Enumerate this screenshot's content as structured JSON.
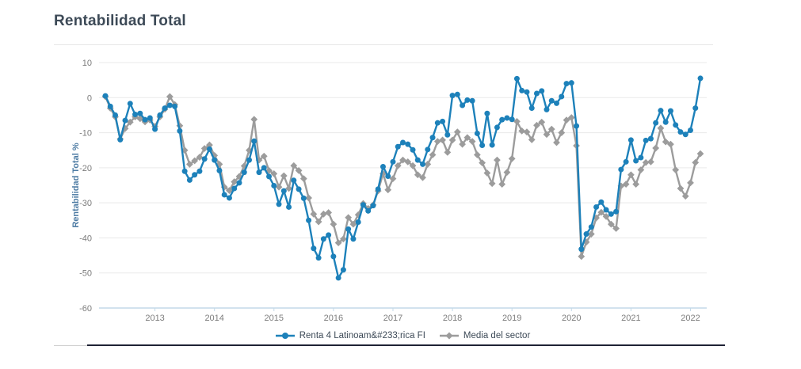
{
  "page": {
    "title": "Rentabilidad Total"
  },
  "chart_data": {
    "type": "line",
    "title": "Rentabilidad Total",
    "xlabel": "",
    "ylabel": "Rentabilidad Total %",
    "ylim": [
      -60,
      10
    ],
    "yticks": [
      10,
      0,
      -10,
      -20,
      -30,
      -40,
      -50,
      -60
    ],
    "xticks": [
      "2013",
      "2014",
      "2015",
      "2016",
      "2017",
      "2018",
      "2019",
      "2020",
      "2021",
      "2022"
    ],
    "x_start": "2012-03",
    "x_frequency": "monthly",
    "points": 121,
    "grid": "horizontal",
    "legend_position": "bottom",
    "colors": {
      "grid_line": "#e9e9e9",
      "axis_line": "#c3d9e8",
      "tick_label": "#7c7c7c",
      "axis_title": "#4d7ba3",
      "title_text": "#3d4a57",
      "legend_text": "#3d4a57"
    },
    "series": [
      {
        "name": "Renta 4 Latinoam&#233;rica FI",
        "color": "#1d81ba",
        "marker": "circle",
        "values": [
          0.5,
          -2.5,
          -5,
          -12,
          -6.5,
          -1.7,
          -4.8,
          -4.5,
          -6.3,
          -5.8,
          -9,
          -5,
          -3,
          -2.2,
          -2.5,
          -9.5,
          -21,
          -23.5,
          -22,
          -21,
          -17.5,
          -14.7,
          -17.8,
          -20.8,
          -27.7,
          -28.6,
          -25.9,
          -24.3,
          -21.3,
          -17.8,
          -12.4,
          -21.3,
          -20,
          -22.5,
          -25.1,
          -30.4,
          -26.6,
          -31.2,
          -23.6,
          -26.1,
          -28.7,
          -35,
          -43,
          -45.7,
          -40.3,
          -39.2,
          -45.3,
          -51.4,
          -49.1,
          -37.5,
          -40.3,
          -35.5,
          -30.6,
          -32.3,
          -30.8,
          -26.1,
          -19.7,
          -22.4,
          -18.3,
          -14,
          -12.8,
          -13.3,
          -14.9,
          -17.8,
          -19,
          -14.8,
          -11.4,
          -7.2,
          -6.8,
          -10.6,
          0.6,
          0.9,
          -2.2,
          -0.7,
          -0.9,
          -10.2,
          -13.6,
          -4.5,
          -13.5,
          -8.5,
          -6.3,
          -5.8,
          -6.2,
          5.4,
          2,
          1.6,
          -3,
          1.2,
          1.9,
          -3.4,
          -0.9,
          -1.6,
          0.3,
          4,
          4.2,
          -8.1,
          -43.2,
          -38.9,
          -36.9,
          -31.2,
          -29.8,
          -32,
          -33.2,
          -32.5,
          -20.5,
          -18.3,
          -12.1,
          -18,
          -17.1,
          -12.2,
          -11.7,
          -7.2,
          -3.7,
          -7,
          -3.8,
          -7.8,
          -9.8,
          -10.5,
          -9.3,
          -3,
          5.5
        ]
      },
      {
        "name": "Media del sector",
        "color": "#9c9c9c",
        "marker": "diamond",
        "values": [
          0.3,
          -3,
          -5.5,
          -11.8,
          -8.8,
          -7,
          -5.5,
          -6,
          -6.9,
          -6.4,
          -8.2,
          -5.5,
          -3.3,
          0.3,
          -2,
          -8,
          -15,
          -19,
          -18,
          -17,
          -14.5,
          -13.5,
          -16.5,
          -19,
          -25.5,
          -26.5,
          -24,
          -22.5,
          -19.5,
          -15,
          -6.2,
          -17.8,
          -16.7,
          -20.8,
          -21.7,
          -25.5,
          -22.3,
          -25.9,
          -19.4,
          -20.8,
          -23.1,
          -28.6,
          -33.2,
          -35.4,
          -33.2,
          -32.8,
          -36.1,
          -41.4,
          -40.3,
          -34.2,
          -36.1,
          -33.4,
          -30.2,
          -31.6,
          -30.6,
          -26.6,
          -21.7,
          -26.3,
          -23.1,
          -19.4,
          -17.8,
          -18.3,
          -19.4,
          -22,
          -22.8,
          -19,
          -16.3,
          -12.5,
          -12.1,
          -15.6,
          -12.1,
          -9.8,
          -13.3,
          -11.4,
          -12.5,
          -16.3,
          -18.6,
          -21.5,
          -24.5,
          -17.8,
          -24.7,
          -21.3,
          -17.4,
          -6.8,
          -9.5,
          -9.8,
          -12,
          -7.9,
          -7,
          -10.5,
          -9,
          -12.8,
          -10,
          -6.4,
          -5.7,
          -13.7,
          -45.3,
          -41.2,
          -38.9,
          -34.3,
          -32.7,
          -33.9,
          -36.1,
          -37.3,
          -25.2,
          -24.7,
          -22,
          -24.7,
          -20.6,
          -18.5,
          -18.3,
          -14.4,
          -8.7,
          -12.6,
          -13.3,
          -20.6,
          -25.9,
          -28.1,
          -24.3,
          -18.5,
          -16
        ]
      }
    ]
  }
}
